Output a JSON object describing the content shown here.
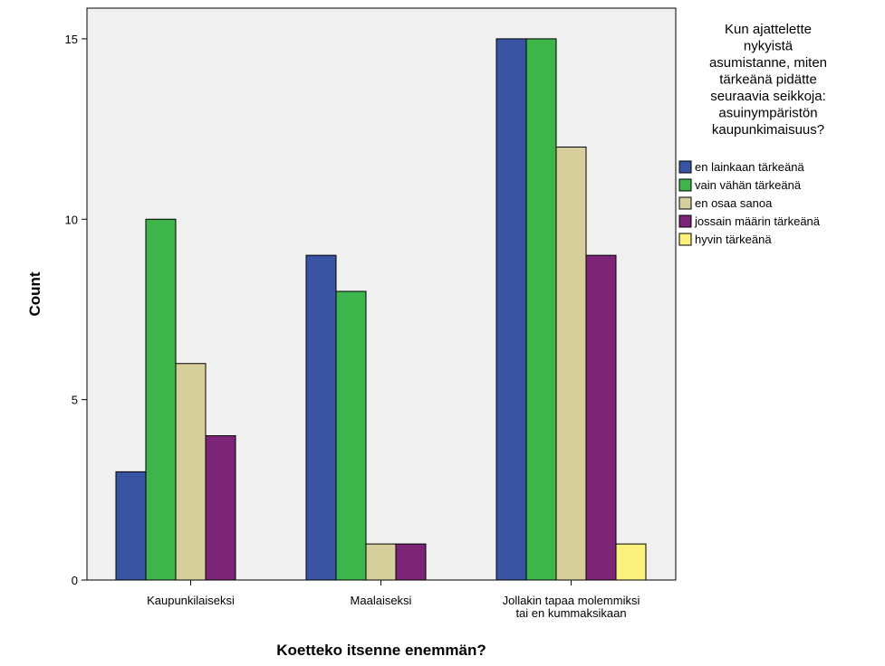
{
  "chart_data": {
    "type": "bar",
    "categories": [
      "Kaupunkilaiseksi",
      "Maalaiseksi",
      "Jollakin tapaa molemmiksi tai en kummaksikaan"
    ],
    "category_label_lines": [
      [
        "Kaupunkilaiseksi"
      ],
      [
        "Maalaiseksi"
      ],
      [
        "Jollakin tapaa molemmiksi",
        "tai en kummaksikaan"
      ]
    ],
    "series": [
      {
        "name": "en lainkaan tärkeänä",
        "color": "#3a54a4",
        "values": [
          3,
          9,
          15
        ]
      },
      {
        "name": "vain vähän tärkeänä",
        "color": "#3db54a",
        "values": [
          10,
          8,
          15
        ]
      },
      {
        "name": "en osaa sanoa",
        "color": "#d6cf9b",
        "values": [
          6,
          1,
          12
        ]
      },
      {
        "name": "jossain määrin tärkeänä",
        "color": "#7c2576",
        "values": [
          4,
          1,
          9
        ]
      },
      {
        "name": "hyvin tärkeänä",
        "color": "#fbf27d",
        "values": [
          0,
          0,
          1
        ]
      }
    ],
    "xlabel": "Koetteko itsenne enemmän?",
    "ylabel": "Count",
    "ylim": [
      0,
      15.85
    ],
    "yticks": [
      0,
      5,
      10,
      15
    ],
    "grid": false,
    "plot_background": "#f0f0f0",
    "legend": {
      "placement": "right",
      "title_lines": [
        "Kun ajattelette",
        "nykyistä",
        "asumistanne, miten",
        "tärkeänä pidätte",
        "seuraavia seikkoja:",
        "asuinympäristön",
        "kaupunkimaisuus?"
      ]
    }
  }
}
